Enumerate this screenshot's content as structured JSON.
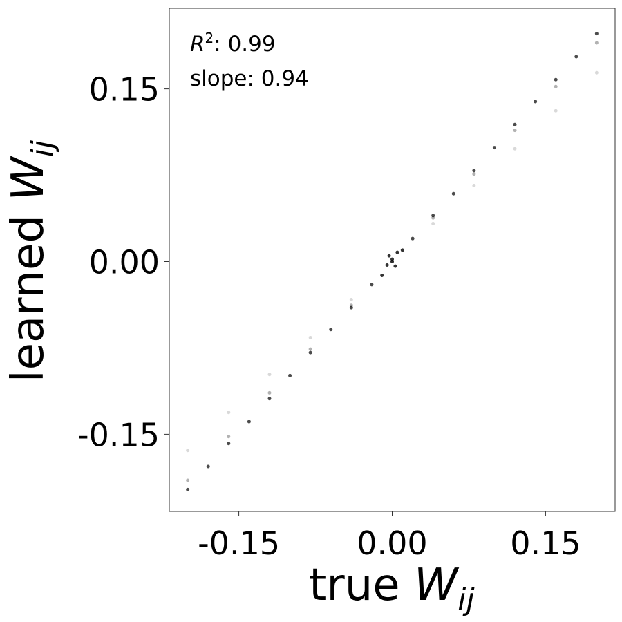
{
  "chart_data": {
    "type": "scatter",
    "xlabel": [
      "true ",
      "W",
      "ij"
    ],
    "ylabel": [
      "learned ",
      "W",
      "ij"
    ],
    "annotations": [
      [
        "R",
        "2",
        ": 0.99"
      ],
      [
        "slope: 0.94"
      ]
    ],
    "xlim": [
      -0.218,
      0.218
    ],
    "ylim": [
      -0.217,
      0.22
    ],
    "xticks": [
      -0.15,
      {
        "value": 0,
        "label": "0.00"
      },
      0.15
    ],
    "yticks": [
      -0.15,
      {
        "value": 0,
        "label": "0.00"
      },
      0.15
    ],
    "grid": false,
    "series": [
      {
        "color": "#000000",
        "opacity": 0.7,
        "x": [
          -0.2,
          -0.18,
          -0.16,
          -0.14,
          -0.12,
          -0.1,
          -0.08,
          -0.06,
          -0.04,
          -0.02,
          0,
          0.02,
          0.04,
          0.06,
          0.08,
          0.1,
          0.12,
          0.14,
          0.16,
          0.18,
          0.2
        ],
        "values": [
          -0.198,
          -0.178,
          -0.158,
          -0.139,
          -0.119,
          -0.099,
          -0.079,
          -0.059,
          -0.04,
          -0.02,
          0,
          0.02,
          0.04,
          0.059,
          0.079,
          0.099,
          0.119,
          0.139,
          0.158,
          0.178,
          0.198
        ]
      },
      {
        "color": "#000000",
        "opacity": 0.3,
        "x": [
          -0.2,
          -0.16,
          -0.12,
          -0.08,
          -0.04,
          0,
          0.04,
          0.08,
          0.12,
          0.16,
          0.2
        ],
        "values": [
          -0.19,
          -0.152,
          -0.114,
          -0.076,
          -0.038,
          0,
          0.038,
          0.076,
          0.114,
          0.152,
          0.19
        ]
      },
      {
        "color": "#000000",
        "opacity": 0.15,
        "x": [
          -0.2,
          -0.16,
          -0.12,
          -0.08,
          -0.04,
          0,
          0.04,
          0.08,
          0.12,
          0.16,
          0.2
        ],
        "values": [
          -0.164,
          -0.131,
          -0.098,
          -0.066,
          -0.033,
          0,
          0.033,
          0.066,
          0.098,
          0.131,
          0.164
        ]
      },
      {
        "color": "#000000",
        "opacity": 0.8,
        "x": [
          -0.01,
          -0.005,
          0,
          0.005,
          0.01,
          0.003,
          -0.003
        ],
        "values": [
          -0.012,
          -0.003,
          0.002,
          0.008,
          0.01,
          -0.004,
          0.005
        ]
      }
    ]
  }
}
